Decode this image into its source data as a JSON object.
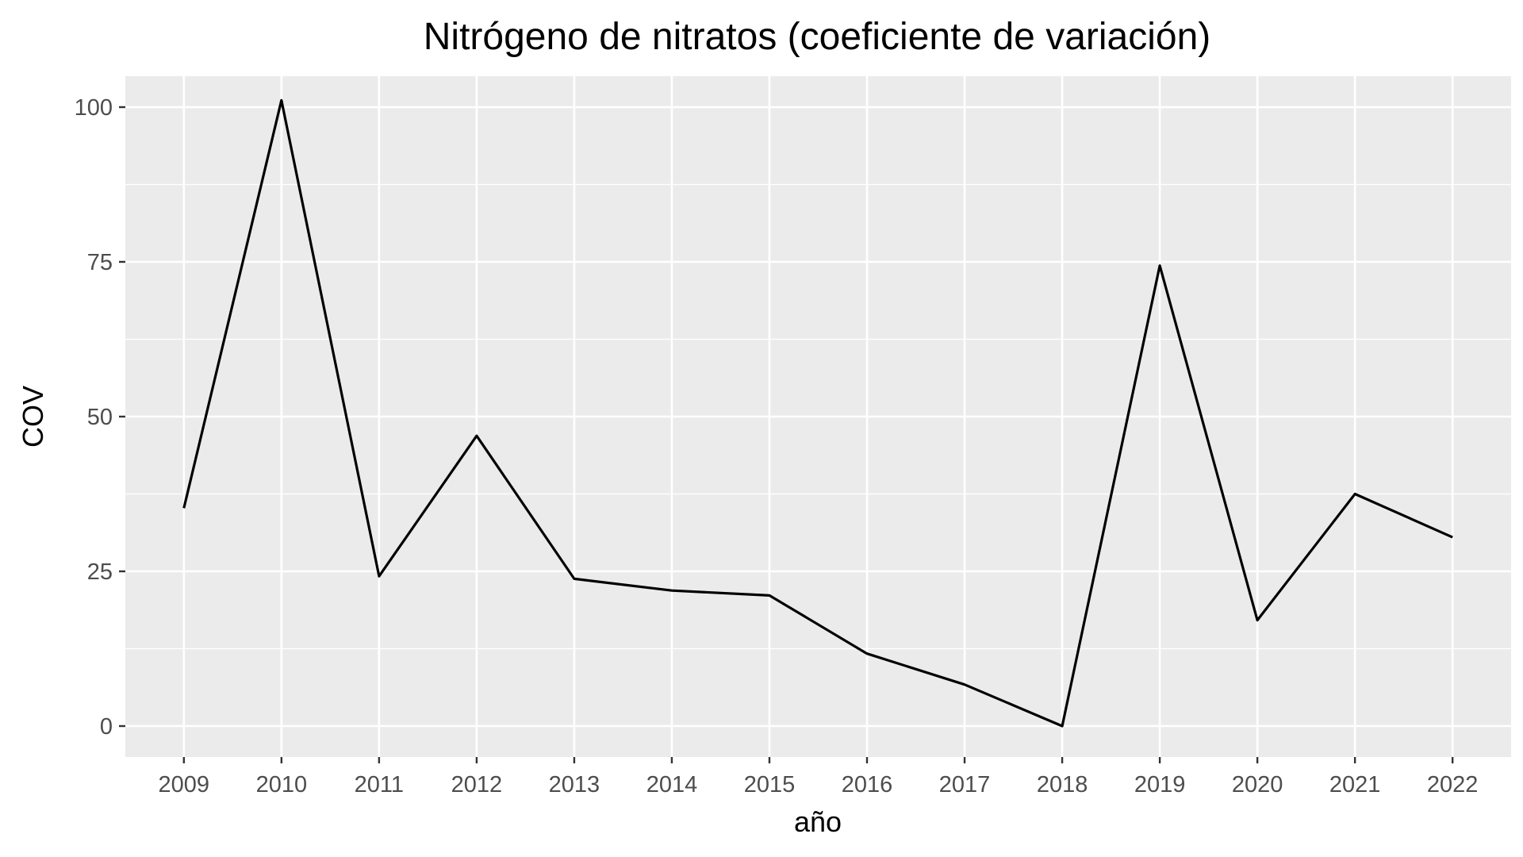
{
  "chart_data": {
    "type": "line",
    "title": "Nitrógeno de nitratos (coeficiente de variación)",
    "xlabel": "año",
    "ylabel": "COV",
    "x": [
      2009,
      2010,
      2011,
      2012,
      2013,
      2014,
      2015,
      2016,
      2017,
      2018,
      2019,
      2020,
      2021,
      2022
    ],
    "x_tick_labels": [
      "2009",
      "2010",
      "2011",
      "2012",
      "2013",
      "2014",
      "2015",
      "2016",
      "2017",
      "2018",
      "2019",
      "2020",
      "2021",
      "2022"
    ],
    "y_tick_values": [
      0,
      25,
      50,
      75,
      100
    ],
    "y_tick_labels": [
      "0",
      "25",
      "50",
      "75",
      "100"
    ],
    "ylim": [
      -5,
      105
    ],
    "xlim": [
      2008.4,
      2022.6
    ],
    "series": [
      {
        "values": [
          35.2,
          101.1,
          24.2,
          46.9,
          23.8,
          21.9,
          21.1,
          11.7,
          6.7,
          0.0,
          74.4,
          17.1,
          37.5,
          30.5
        ]
      }
    ],
    "grid": true,
    "legend": "none",
    "colors": {
      "panel": "#ebebeb",
      "grid": "#ffffff",
      "line": "#000000",
      "tick_text": "#4d4d4d"
    }
  }
}
